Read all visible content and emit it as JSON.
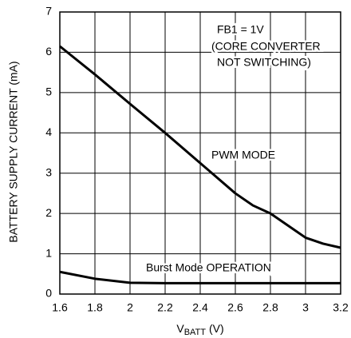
{
  "chart_data": {
    "type": "line",
    "y_label": "BATTERY SUPPLY CURRENT (mA)",
    "x_label": {
      "symbol": "V",
      "subscript": "BATT",
      "rest": "(V)"
    },
    "x": [
      1.6,
      1.8,
      2.0,
      2.2,
      2.4,
      2.6,
      2.7,
      2.8,
      2.9,
      3.0,
      3.1,
      3.2
    ],
    "series": [
      {
        "name": "PWM MODE",
        "color": "#000000",
        "values": [
          6.15,
          5.45,
          4.72,
          4.0,
          3.25,
          2.5,
          2.2,
          2.0,
          1.7,
          1.4,
          1.25,
          1.15
        ]
      },
      {
        "name": "Burst Mode OPERATION",
        "color": "#000000",
        "values": [
          0.55,
          0.38,
          0.28,
          0.27,
          0.27,
          0.27,
          0.27,
          0.27,
          0.27,
          0.27,
          0.27,
          0.27
        ]
      }
    ],
    "annotations": [
      "FB1 = 1V",
      "(CORE CONVERTER",
      "NOT SWITCHING)"
    ],
    "xlim": [
      1.6,
      3.2
    ],
    "xticks": [
      1.6,
      1.8,
      2,
      2.2,
      2.4,
      2.6,
      2.8,
      3,
      3.2
    ],
    "ylim": [
      0,
      7
    ],
    "yticks": [
      0,
      1,
      2,
      3,
      4,
      5,
      6,
      7
    ],
    "grid": true
  }
}
